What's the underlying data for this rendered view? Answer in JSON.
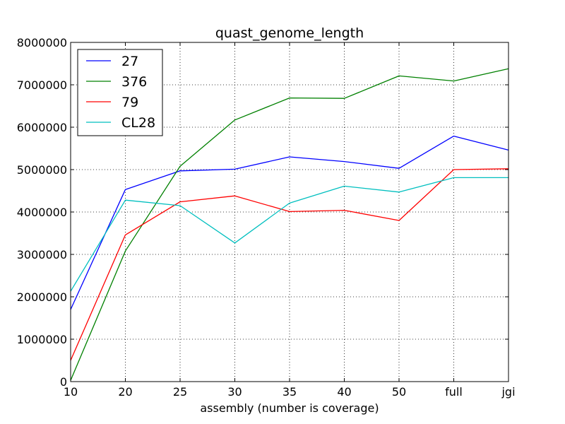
{
  "chart_data": {
    "type": "line",
    "title": "quast_genome_length",
    "xlabel": "assembly (number is coverage)",
    "ylabel": "",
    "categories": [
      "10",
      "20",
      "25",
      "30",
      "35",
      "40",
      "50",
      "full",
      "jgi"
    ],
    "y_ticks": [
      "0",
      "1000000",
      "2000000",
      "3000000",
      "4000000",
      "5000000",
      "6000000",
      "7000000",
      "8000000"
    ],
    "ylim": [
      0,
      8000000
    ],
    "grid": true,
    "legend_position": "top-left",
    "series": [
      {
        "name": "27",
        "color": "#0000ff",
        "values": [
          1700000,
          4530000,
          4970000,
          5010000,
          5300000,
          5190000,
          5030000,
          5790000,
          5460000
        ]
      },
      {
        "name": "376",
        "color": "#008000",
        "values": [
          30000,
          3080000,
          5080000,
          6170000,
          6690000,
          6680000,
          7210000,
          7090000,
          7380000
        ]
      },
      {
        "name": "79",
        "color": "#ff0000",
        "values": [
          500000,
          3460000,
          4240000,
          4380000,
          4010000,
          4040000,
          3800000,
          5000000,
          5020000
        ]
      },
      {
        "name": "CL28",
        "color": "#00bfbf",
        "values": [
          2130000,
          4280000,
          4150000,
          3270000,
          4210000,
          4610000,
          4470000,
          4810000,
          4810000
        ]
      }
    ]
  }
}
